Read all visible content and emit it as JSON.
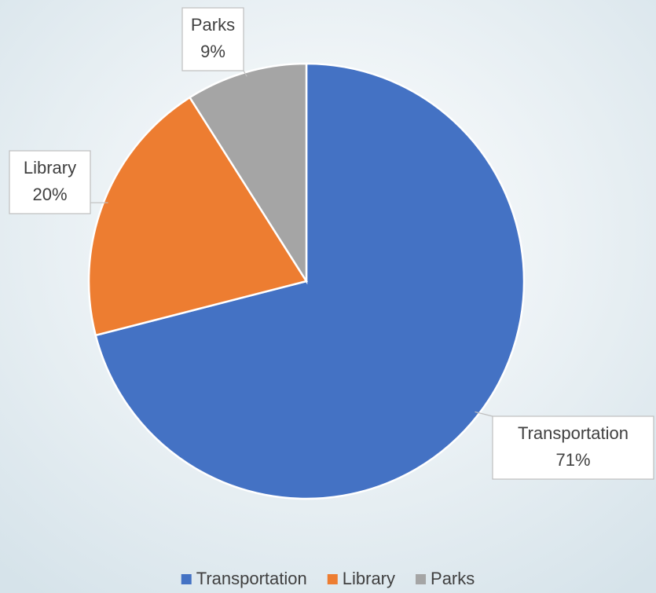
{
  "chart_data": {
    "type": "pie",
    "categories": [
      "Transportation",
      "Library",
      "Parks"
    ],
    "values": [
      71,
      20,
      9
    ],
    "value_labels": [
      "71%",
      "20%",
      "9%"
    ],
    "colors": [
      "#4472c4",
      "#ed7d31",
      "#a5a5a5"
    ],
    "legend": "bottom"
  }
}
